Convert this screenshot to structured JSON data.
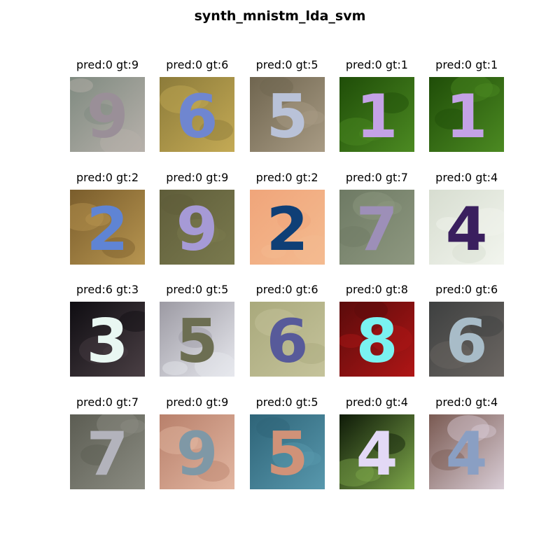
{
  "figure": {
    "title": "synth_mnistm_lda_svm"
  },
  "grid": {
    "rows": 4,
    "cols": 5,
    "cells": [
      {
        "label": "pred:0 gt:9",
        "pred": 0,
        "gt": 9,
        "digit": "9",
        "digit_color": "#9a8f98",
        "background": [
          "#7f8a80",
          "#b7b1ab"
        ]
      },
      {
        "label": "pred:0 gt:6",
        "pred": 0,
        "gt": 6,
        "digit": "6",
        "digit_color": "#6f86d0",
        "background": [
          "#8c7b3a",
          "#c4aa55"
        ]
      },
      {
        "label": "pred:0 gt:5",
        "pred": 0,
        "gt": 5,
        "digit": "5",
        "digit_color": "#b9c2d8",
        "background": [
          "#6f654f",
          "#a89b84"
        ]
      },
      {
        "label": "pred:0 gt:1",
        "pred": 0,
        "gt": 1,
        "digit": "1",
        "digit_color": "#c4a2e6",
        "background": [
          "#1f4d08",
          "#4c8a22"
        ]
      },
      {
        "label": "pred:0 gt:1",
        "pred": 0,
        "gt": 1,
        "digit": "1",
        "digit_color": "#c4a2e6",
        "background": [
          "#1f4d08",
          "#4c8a22"
        ]
      },
      {
        "label": "pred:0 gt:2",
        "pred": 0,
        "gt": 2,
        "digit": "2",
        "digit_color": "#5f84d4",
        "background": [
          "#7a5d2c",
          "#b79550"
        ]
      },
      {
        "label": "pred:0 gt:9",
        "pred": 0,
        "gt": 9,
        "digit": "9",
        "digit_color": "#a69ad6",
        "background": [
          "#5f5d3a",
          "#7a7a4e"
        ]
      },
      {
        "label": "pred:0 gt:2",
        "pred": 0,
        "gt": 2,
        "digit": "2",
        "digit_color": "#0f3f76",
        "background": [
          "#f0a57a",
          "#f4bb90"
        ]
      },
      {
        "label": "pred:0 gt:7",
        "pred": 0,
        "gt": 7,
        "digit": "7",
        "digit_color": "#9d8fb8",
        "background": [
          "#6e7a64",
          "#8e9880"
        ]
      },
      {
        "label": "pred:0 gt:4",
        "pred": 0,
        "gt": 4,
        "digit": "4",
        "digit_color": "#3a1f5e",
        "background": [
          "#d7ddd0",
          "#f2f5ee"
        ]
      },
      {
        "label": "pred:6 gt:3",
        "pred": 6,
        "gt": 3,
        "digit": "3",
        "digit_color": "#e9f7f2",
        "background": [
          "#0f0d12",
          "#4a3f44"
        ]
      },
      {
        "label": "pred:0 gt:5",
        "pred": 0,
        "gt": 5,
        "digit": "5",
        "digit_color": "#6c6e52",
        "background": [
          "#9c9aa3",
          "#e7e8ee"
        ]
      },
      {
        "label": "pred:0 gt:6",
        "pred": 0,
        "gt": 6,
        "digit": "6",
        "digit_color": "#575a9a",
        "background": [
          "#a9a97c",
          "#c5c39b"
        ]
      },
      {
        "label": "pred:0 gt:8",
        "pred": 0,
        "gt": 8,
        "digit": "8",
        "digit_color": "#7af2f0",
        "background": [
          "#5a0b0b",
          "#b01616"
        ]
      },
      {
        "label": "pred:0 gt:6",
        "pred": 0,
        "gt": 6,
        "digit": "6",
        "digit_color": "#a8bcc8",
        "background": [
          "#3e4040",
          "#6b6662"
        ]
      },
      {
        "label": "pred:0 gt:7",
        "pred": 0,
        "gt": 7,
        "digit": "7",
        "digit_color": "#b3b3bc",
        "background": [
          "#5c5d53",
          "#8b8c82"
        ]
      },
      {
        "label": "pred:0 gt:9",
        "pred": 0,
        "gt": 9,
        "digit": "9",
        "digit_color": "#7f98a6",
        "background": [
          "#b8806b",
          "#e3b7a2"
        ]
      },
      {
        "label": "pred:0 gt:5",
        "pred": 0,
        "gt": 5,
        "digit": "5",
        "digit_color": "#d09278",
        "background": [
          "#2e6478",
          "#5898ad"
        ]
      },
      {
        "label": "pred:0 gt:4",
        "pred": 0,
        "gt": 4,
        "digit": "4",
        "digit_color": "#e3d9f6",
        "background": [
          "#0e1a08",
          "#7da64a"
        ]
      },
      {
        "label": "pred:0 gt:4",
        "pred": 0,
        "gt": 4,
        "digit": "4",
        "digit_color": "#8a9fc3",
        "background": [
          "#7a5a52",
          "#d9cdd6"
        ]
      }
    ]
  }
}
